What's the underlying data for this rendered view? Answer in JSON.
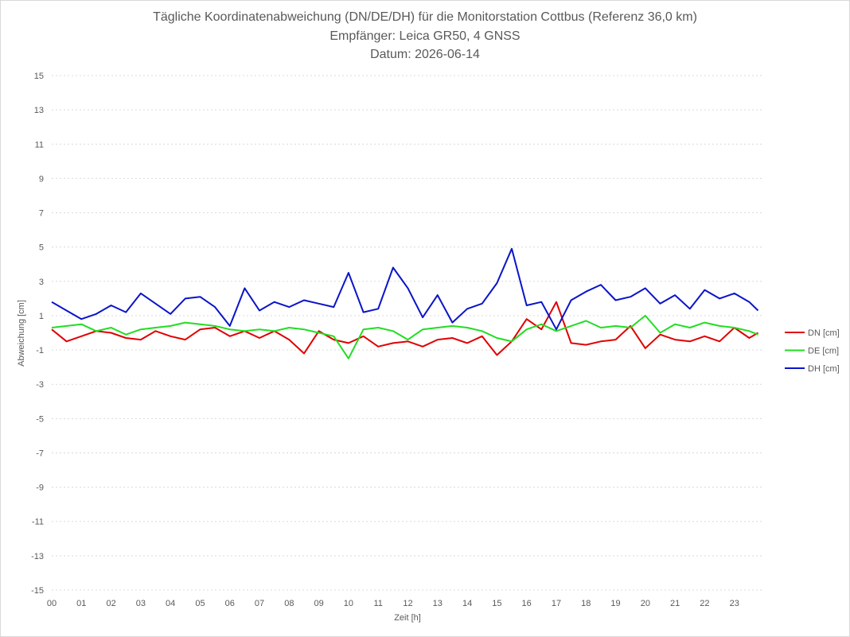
{
  "chart_data": {
    "type": "line",
    "title": "Tägliche Koordinatenabweichung (DN/DE/DH) für die Monitorstation Cottbus (Referenz 36,0 km)",
    "subtitle": "Empfänger: Leica GR50, 4 GNSS",
    "date_line": "Datum: 2026-06-14",
    "xlabel": "Zeit [h]",
    "ylabel": "Abweichung [cm]",
    "xlim": [
      0,
      24
    ],
    "ylim": [
      -15,
      15
    ],
    "x_ticks": [
      "00",
      "01",
      "02",
      "03",
      "04",
      "05",
      "06",
      "07",
      "08",
      "09",
      "10",
      "11",
      "12",
      "13",
      "14",
      "15",
      "16",
      "17",
      "18",
      "19",
      "20",
      "21",
      "22",
      "23"
    ],
    "y_ticks": [
      15,
      13,
      11,
      9,
      7,
      5,
      3,
      1,
      -1,
      -3,
      -5,
      -7,
      -9,
      -11,
      -13,
      -15
    ],
    "grid": "horizontal-dotted",
    "legend_position": "right",
    "x": [
      0,
      0.5,
      1,
      1.5,
      2,
      2.5,
      3,
      3.5,
      4,
      4.5,
      5,
      5.5,
      6,
      6.5,
      7,
      7.5,
      8,
      8.5,
      9,
      9.5,
      10,
      10.5,
      11,
      11.5,
      12,
      12.5,
      13,
      13.5,
      14,
      14.5,
      15,
      15.5,
      16,
      16.5,
      17,
      17.5,
      18,
      18.5,
      19,
      19.5,
      20,
      20.5,
      21,
      21.5,
      22,
      22.5,
      23,
      23.5,
      23.8
    ],
    "series": [
      {
        "name": "DN [cm]",
        "color": "#e00000",
        "values": [
          0.2,
          -0.5,
          -0.2,
          0.1,
          0.0,
          -0.3,
          -0.4,
          0.1,
          -0.2,
          -0.4,
          0.2,
          0.3,
          -0.2,
          0.1,
          -0.3,
          0.1,
          -0.4,
          -1.2,
          0.1,
          -0.4,
          -0.6,
          -0.2,
          -0.8,
          -0.6,
          -0.5,
          -0.8,
          -0.4,
          -0.3,
          -0.6,
          -0.2,
          -1.3,
          -0.5,
          0.8,
          0.2,
          1.8,
          -0.6,
          -0.7,
          -0.5,
          -0.4,
          0.4,
          -0.9,
          -0.1,
          -0.4,
          -0.5,
          -0.2,
          -0.5,
          0.3,
          -0.3,
          0.0
        ]
      },
      {
        "name": "DE [cm]",
        "color": "#22dd22",
        "values": [
          0.3,
          0.4,
          0.5,
          0.1,
          0.3,
          -0.1,
          0.2,
          0.3,
          0.4,
          0.6,
          0.5,
          0.4,
          0.2,
          0.1,
          0.2,
          0.1,
          0.3,
          0.2,
          0.0,
          -0.2,
          -1.5,
          0.2,
          0.3,
          0.1,
          -0.4,
          0.2,
          0.3,
          0.4,
          0.3,
          0.1,
          -0.3,
          -0.5,
          0.2,
          0.5,
          0.1,
          0.4,
          0.7,
          0.3,
          0.4,
          0.3,
          1.0,
          0.0,
          0.5,
          0.3,
          0.6,
          0.4,
          0.3,
          0.1,
          -0.1
        ]
      },
      {
        "name": "DH [cm]",
        "color": "#0a14c8",
        "values": [
          1.8,
          1.3,
          0.8,
          1.1,
          1.6,
          1.2,
          2.3,
          1.7,
          1.1,
          2.0,
          2.1,
          1.5,
          0.4,
          2.6,
          1.3,
          1.8,
          1.5,
          1.9,
          1.7,
          1.5,
          3.5,
          1.2,
          1.4,
          3.8,
          2.6,
          0.9,
          2.2,
          0.6,
          1.4,
          1.7,
          2.9,
          4.9,
          1.6,
          1.8,
          0.2,
          1.9,
          2.4,
          2.8,
          1.9,
          2.1,
          2.6,
          1.7,
          2.2,
          1.4,
          2.5,
          2.0,
          2.3,
          1.8,
          1.3
        ]
      }
    ]
  }
}
